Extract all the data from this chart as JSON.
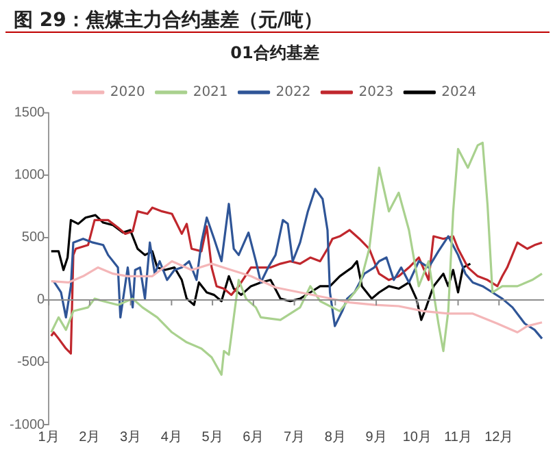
{
  "chart_data": {
    "type": "line",
    "title": "图 29：焦煤主力合约基差（元/吨）",
    "subtitle": "01合约基差",
    "xlim": [
      1,
      13.1
    ],
    "xticks": [
      {
        "value": 1,
        "label": "1月"
      },
      {
        "value": 2,
        "label": "2月"
      },
      {
        "value": 3,
        "label": "3月"
      },
      {
        "value": 4,
        "label": "4月"
      },
      {
        "value": 5,
        "label": "5月"
      },
      {
        "value": 6,
        "label": "6月"
      },
      {
        "value": 7,
        "label": "7月"
      },
      {
        "value": 8,
        "label": "8月"
      },
      {
        "value": 9,
        "label": "9月"
      },
      {
        "value": 10,
        "label": "10月"
      },
      {
        "value": 11,
        "label": "11月"
      },
      {
        "value": 12,
        "label": "12月"
      }
    ],
    "ylim": [
      -1000,
      1500
    ],
    "yticks": [
      -1000,
      -500,
      0,
      500,
      1000,
      1500
    ],
    "legend": "top",
    "marker": "none",
    "line_style": "solid",
    "series": [
      {
        "name": "2020",
        "color": "#f4b6b8",
        "x": [
          1.06,
          1.48,
          1.84,
          2.2,
          2.57,
          2.93,
          3.53,
          4.01,
          4.49,
          4.98,
          5.46,
          5.94,
          6.54,
          7.14,
          7.75,
          8.35,
          8.95,
          9.55,
          10.16,
          10.76,
          11.36,
          11.96,
          12.45,
          12.69,
          13.05
        ],
        "values": [
          150,
          140,
          190,
          260,
          210,
          190,
          190,
          310,
          240,
          290,
          240,
          190,
          100,
          60,
          20,
          -20,
          -40,
          -50,
          -90,
          -110,
          -110,
          -190,
          -260,
          -210,
          -180
        ]
      },
      {
        "name": "2021",
        "color": "#a9d18e",
        "x": [
          1.06,
          1.24,
          1.42,
          1.6,
          1.96,
          2.12,
          2.33,
          2.69,
          3.05,
          3.29,
          3.65,
          4.01,
          4.37,
          4.73,
          4.98,
          5.22,
          5.28,
          5.4,
          5.52,
          5.64,
          5.82,
          6.06,
          6.18,
          6.66,
          7.14,
          7.39,
          7.63,
          8.11,
          8.59,
          8.83,
          9.07,
          9.31,
          9.55,
          9.8,
          10.04,
          10.28,
          10.52,
          10.64,
          10.76,
          10.88,
          11,
          11.24,
          11.48,
          11.6,
          11.72,
          11.84,
          12.08,
          12.45,
          12.81,
          13.05
        ],
        "values": [
          -260,
          -140,
          -240,
          -90,
          -60,
          10,
          -10,
          -40,
          10,
          -60,
          -140,
          -260,
          -340,
          -390,
          -460,
          -600,
          -410,
          -440,
          -140,
          160,
          10,
          -60,
          -140,
          -160,
          -60,
          110,
          -10,
          -90,
          110,
          410,
          1060,
          710,
          860,
          560,
          110,
          310,
          -190,
          -410,
          -90,
          710,
          1210,
          1060,
          1240,
          1260,
          760,
          60,
          110,
          110,
          160,
          210
        ]
      },
      {
        "name": "2022",
        "color": "#2f5597",
        "x": [
          1.12,
          1.3,
          1.42,
          1.54,
          1.6,
          1.84,
          2.08,
          2.33,
          2.45,
          2.69,
          2.75,
          2.93,
          3.05,
          3.11,
          3.23,
          3.35,
          3.47,
          3.59,
          3.71,
          3.89,
          4.07,
          4.25,
          4.43,
          4.61,
          4.73,
          4.86,
          5.04,
          5.22,
          5.4,
          5.52,
          5.64,
          5.88,
          6.06,
          6.18,
          6.36,
          6.54,
          6.72,
          6.84,
          6.96,
          7.14,
          7.33,
          7.51,
          7.69,
          7.81,
          7.87,
          7.99,
          8.17,
          8.29,
          8.47,
          8.71,
          8.95,
          9.07,
          9.25,
          9.43,
          9.61,
          9.8,
          10.04,
          10.28,
          10.52,
          10.76,
          11,
          11.18,
          11.36,
          11.6,
          11.84,
          12.08,
          12.33,
          12.63,
          12.87,
          13.05
        ],
        "values": [
          150,
          60,
          -140,
          110,
          460,
          490,
          460,
          440,
          360,
          260,
          -140,
          260,
          -60,
          240,
          260,
          10,
          460,
          210,
          310,
          160,
          240,
          260,
          310,
          160,
          460,
          660,
          490,
          310,
          770,
          410,
          360,
          540,
          310,
          140,
          260,
          360,
          640,
          610,
          310,
          460,
          710,
          890,
          810,
          560,
          60,
          -210,
          -90,
          10,
          60,
          210,
          260,
          310,
          340,
          160,
          260,
          140,
          310,
          260,
          390,
          510,
          360,
          210,
          140,
          110,
          60,
          10,
          -60,
          -190,
          -240,
          -310
        ]
      },
      {
        "name": "2023",
        "color": "#c0272d",
        "x": [
          1.06,
          1.12,
          1.24,
          1.42,
          1.54,
          1.6,
          1.66,
          1.96,
          2.12,
          2.45,
          2.69,
          2.87,
          3.05,
          3.17,
          3.41,
          3.53,
          3.77,
          4.01,
          4.25,
          4.37,
          4.49,
          4.73,
          4.86,
          4.98,
          5.1,
          5.28,
          5.46,
          5.64,
          5.94,
          6.18,
          6.42,
          6.66,
          6.9,
          7.14,
          7.39,
          7.63,
          7.81,
          7.93,
          8.11,
          8.35,
          8.59,
          8.83,
          9.07,
          9.31,
          9.55,
          9.8,
          10.04,
          10.28,
          10.4,
          10.64,
          10.88,
          11,
          11.24,
          11.48,
          11.72,
          11.96,
          12.08,
          12.2,
          12.45,
          12.69,
          12.87,
          13.05
        ],
        "values": [
          -290,
          -260,
          -310,
          -390,
          -430,
          360,
          410,
          440,
          640,
          640,
          580,
          530,
          550,
          710,
          690,
          740,
          710,
          690,
          530,
          610,
          410,
          390,
          590,
          260,
          110,
          90,
          40,
          110,
          260,
          260,
          260,
          290,
          310,
          290,
          340,
          310,
          410,
          490,
          510,
          560,
          490,
          410,
          210,
          160,
          190,
          260,
          340,
          160,
          510,
          490,
          510,
          410,
          260,
          190,
          160,
          110,
          190,
          260,
          460,
          410,
          440,
          460
        ]
      },
      {
        "name": "2024",
        "color": "#000000",
        "x": [
          1.06,
          1.24,
          1.36,
          1.46,
          1.54,
          1.72,
          1.9,
          2.14,
          2.33,
          2.57,
          2.81,
          2.99,
          3.17,
          3.35,
          3.53,
          3.65,
          3.83,
          4.07,
          4.25,
          4.37,
          4.55,
          4.67,
          4.86,
          5.04,
          5.22,
          5.4,
          5.52,
          5.7,
          5.94,
          6.18,
          6.42,
          6.66,
          6.9,
          7.14,
          7.39,
          7.63,
          7.87,
          8.11,
          8.41,
          8.53,
          8.65,
          8.89,
          9.07,
          9.31,
          9.55,
          9.8,
          9.98,
          10.1,
          10.22,
          10.4,
          10.64,
          10.76,
          10.88,
          11,
          11.12,
          11.3
        ],
        "values": [
          390,
          390,
          240,
          340,
          640,
          610,
          660,
          680,
          620,
          600,
          540,
          560,
          410,
          360,
          390,
          260,
          240,
          260,
          160,
          10,
          -40,
          140,
          60,
          40,
          -10,
          190,
          90,
          40,
          110,
          140,
          160,
          10,
          -10,
          10,
          60,
          110,
          110,
          190,
          260,
          310,
          110,
          10,
          60,
          110,
          90,
          140,
          10,
          -160,
          -60,
          110,
          210,
          110,
          240,
          60,
          260,
          290
        ]
      }
    ]
  }
}
